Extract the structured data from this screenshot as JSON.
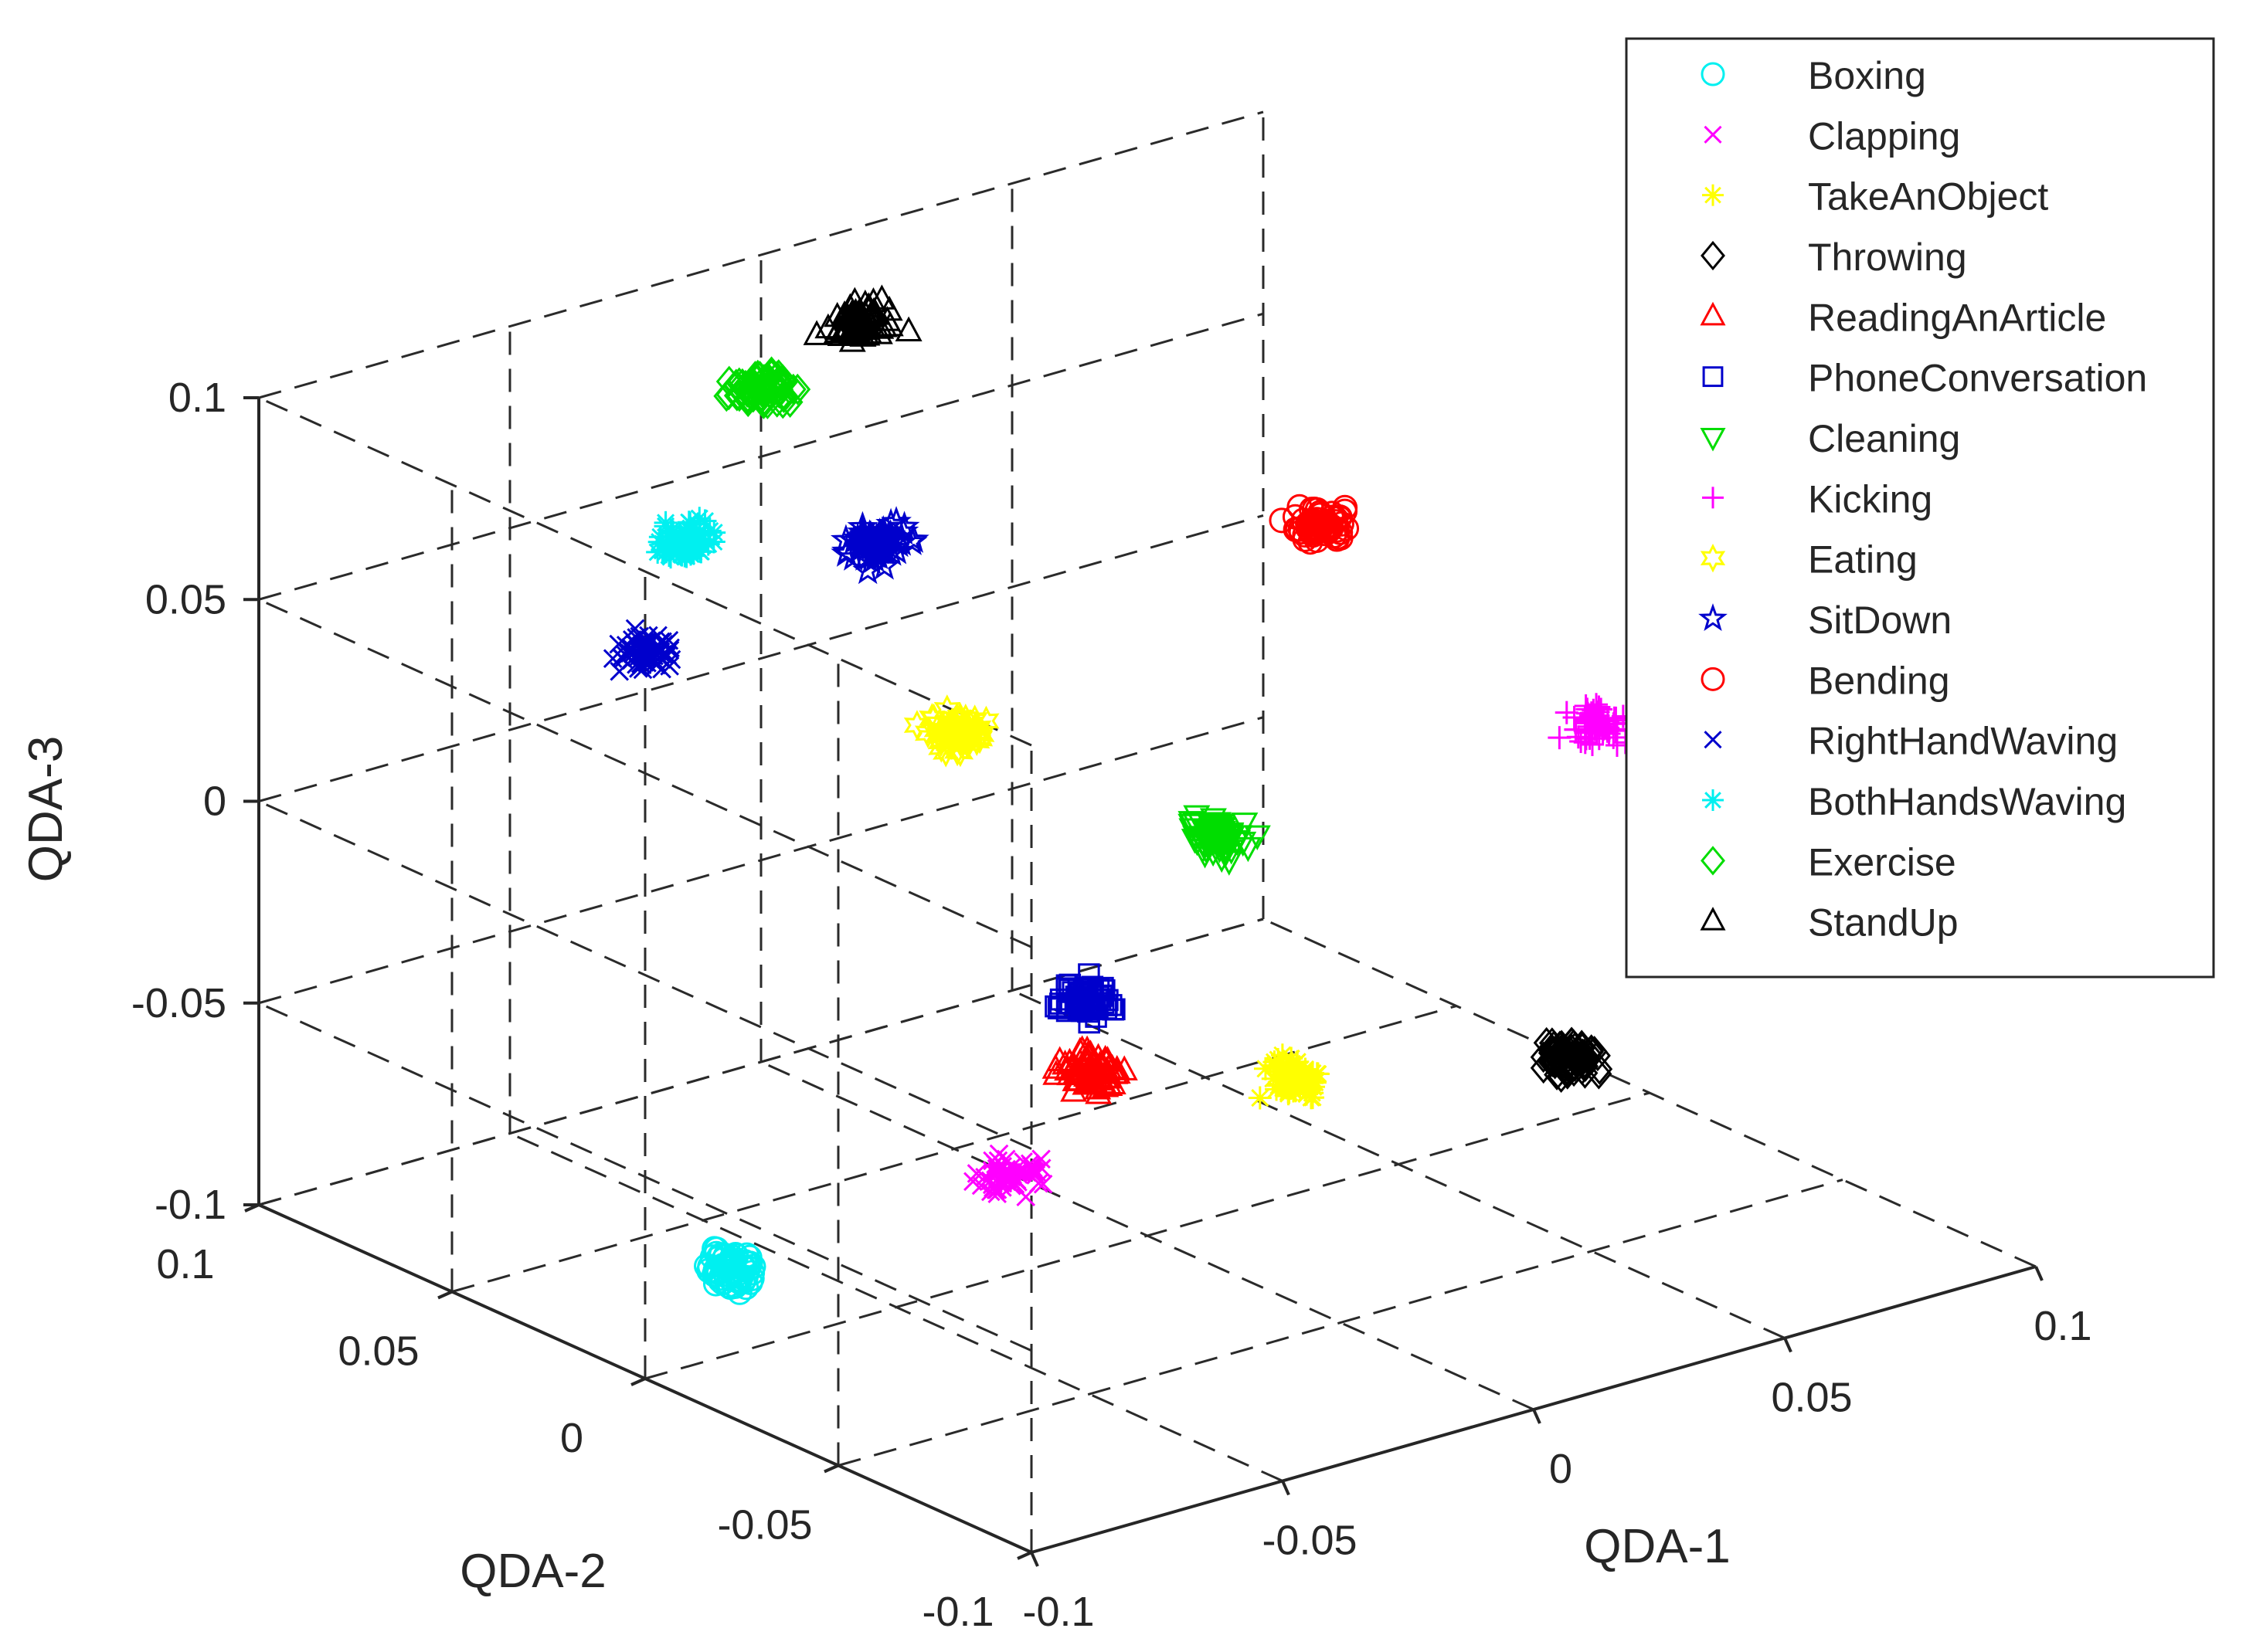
{
  "chart_data": {
    "type": "scatter",
    "dimensions": 3,
    "title": "",
    "xlabel": "QDA-1",
    "ylabel": "QDA-2",
    "zlabel": "QDA-3",
    "xlim": [
      -0.1,
      0.1
    ],
    "ylim": [
      -0.1,
      0.1
    ],
    "zlim": [
      -0.1,
      0.1
    ],
    "grid": true,
    "legend_position": "top-right",
    "x_ticks": [
      "-0.1",
      "-0.05",
      "0",
      "0.05",
      "0.1"
    ],
    "y_ticks": [
      "-0.1",
      "-0.05",
      "0",
      "0.05",
      "0.1"
    ],
    "z_ticks": [
      "-0.1",
      "-0.05",
      "0",
      "0.05",
      "0.1"
    ],
    "series": [
      {
        "name": "Boxing",
        "marker": "circle",
        "color": "#00f0f0",
        "center": [
          -0.06,
          0.03,
          -0.1
        ]
      },
      {
        "name": "Clapping",
        "marker": "x",
        "color": "#ff00ff",
        "center": [
          0.0,
          0.035,
          -0.1
        ]
      },
      {
        "name": "TakeAnObject",
        "marker": "asterisk",
        "color": "#ffff00",
        "center": [
          0.06,
          0.04,
          -0.1
        ]
      },
      {
        "name": "Throwing",
        "marker": "diamond",
        "color": "#000000",
        "center": [
          0.1,
          0.02,
          -0.1
        ]
      },
      {
        "name": "ReadingAnArticle",
        "marker": "triangle-up",
        "color": "#ff0000",
        "center": [
          -0.05,
          -0.05,
          -0.02
        ]
      },
      {
        "name": "PhoneConversation",
        "marker": "square",
        "color": "#0000cc",
        "center": [
          -0.02,
          -0.01,
          -0.03
        ]
      },
      {
        "name": "Cleaning",
        "marker": "triangle-down",
        "color": "#00dd00",
        "center": [
          0.03,
          0.02,
          -0.02
        ]
      },
      {
        "name": "Kicking",
        "marker": "plus",
        "color": "#ff00ff",
        "center": [
          0.09,
          0.0,
          -0.005
        ]
      },
      {
        "name": "Eating",
        "marker": "hexagram",
        "color": "#ffff00",
        "center": [
          -0.045,
          -0.01,
          0.045
        ]
      },
      {
        "name": "SitDown",
        "marker": "pentagram",
        "color": "#0000cc",
        "center": [
          -0.015,
          0.05,
          0.055
        ]
      },
      {
        "name": "Bending",
        "marker": "circle",
        "color": "#ff0000",
        "center": [
          0.05,
          0.02,
          0.05
        ]
      },
      {
        "name": "RightHandWaving",
        "marker": "x",
        "color": "#0000cc",
        "center": [
          -0.1,
          0.0,
          0.08
        ]
      },
      {
        "name": "BothHandsWaving",
        "marker": "asterisk",
        "color": "#00f0f0",
        "center": [
          -0.065,
          0.035,
          0.08
        ]
      },
      {
        "name": "Exercise",
        "marker": "diamond",
        "color": "#00dd00",
        "center": [
          -0.03,
          0.06,
          0.095
        ]
      },
      {
        "name": "StandUp",
        "marker": "triangle-up",
        "color": "#000000",
        "center": [
          0.005,
          0.08,
          0.09
        ]
      }
    ]
  }
}
